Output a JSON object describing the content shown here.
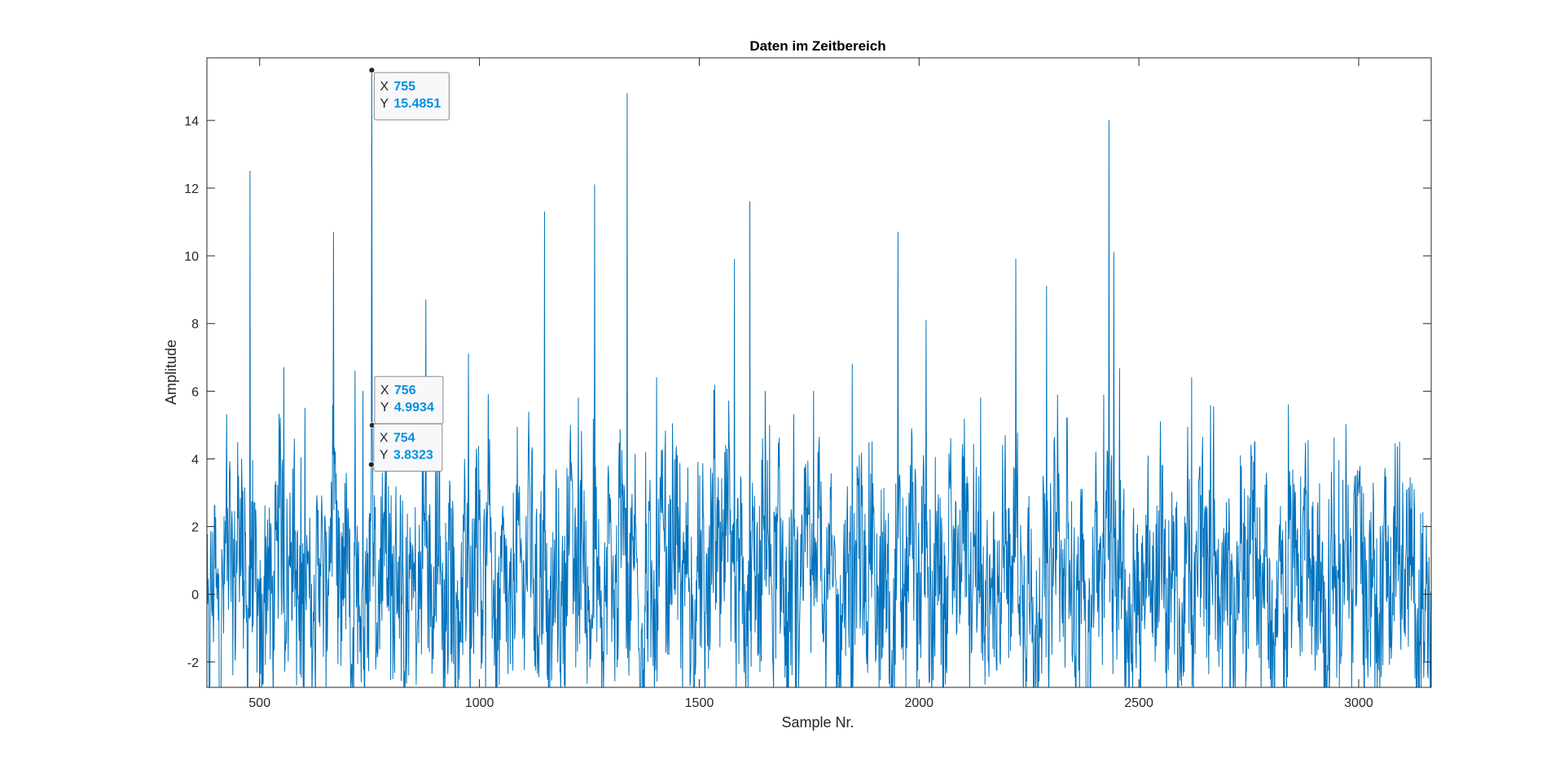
{
  "chart_data": {
    "type": "line",
    "title": "Daten im Zeitbereich",
    "xlabel": "Sample Nr.",
    "ylabel": "Amplitude",
    "xlim": [
      380,
      3165
    ],
    "ylim": [
      -2.75,
      15.85
    ],
    "xticks": [
      500,
      1000,
      1500,
      2000,
      2500,
      3000
    ],
    "xtick_labels": [
      "500",
      "1000",
      "1500",
      "2000",
      "2500",
      "3000"
    ],
    "yticks": [
      -2,
      0,
      2,
      4,
      6,
      8,
      10,
      12,
      14
    ],
    "ytick_labels": [
      "-2",
      "0",
      "2",
      "4",
      "6",
      "8",
      "10",
      "12",
      "14"
    ],
    "grid": false,
    "line_color": "#0072bd",
    "series": [
      {
        "x_start": 380,
        "x_end": 3165,
        "peaks": [
          [
            478,
            12.5
          ],
          [
            555,
            6.7
          ],
          [
            603,
            5.5
          ],
          [
            668,
            10.7
          ],
          [
            717,
            6.6
          ],
          [
            735,
            6.0
          ],
          [
            755,
            15.4851
          ],
          [
            878,
            8.7
          ],
          [
            975,
            7.1
          ],
          [
            1020,
            5.9
          ],
          [
            1148,
            11.3
          ],
          [
            1225,
            5.8
          ],
          [
            1262,
            12.1
          ],
          [
            1336,
            14.8
          ],
          [
            1403,
            6.4
          ],
          [
            1580,
            9.9
          ],
          [
            1615,
            11.6
          ],
          [
            1650,
            6.0
          ],
          [
            1760,
            6.0
          ],
          [
            1848,
            6.8
          ],
          [
            1952,
            10.7
          ],
          [
            2016,
            8.1
          ],
          [
            2140,
            5.8
          ],
          [
            2220,
            9.9
          ],
          [
            2290,
            9.1
          ],
          [
            2432,
            14.0
          ],
          [
            2443,
            10.1
          ],
          [
            2620,
            6.4
          ],
          [
            2840,
            5.6
          ],
          [
            3093,
            4.5
          ]
        ]
      }
    ],
    "datatips": [
      {
        "id": "tip-755",
        "x": 755,
        "y": 15.4851,
        "x_label": "X",
        "y_label": "Y",
        "x_text": "755",
        "y_text": "15.4851"
      },
      {
        "id": "tip-756",
        "x": 756,
        "y": 4.9934,
        "x_label": "X",
        "y_label": "Y",
        "x_text": "756",
        "y_text": "4.9934"
      },
      {
        "id": "tip-754",
        "x": 754,
        "y": 3.8323,
        "x_label": "X",
        "y_label": "Y",
        "x_text": "754",
        "y_text": "3.8323"
      }
    ]
  }
}
